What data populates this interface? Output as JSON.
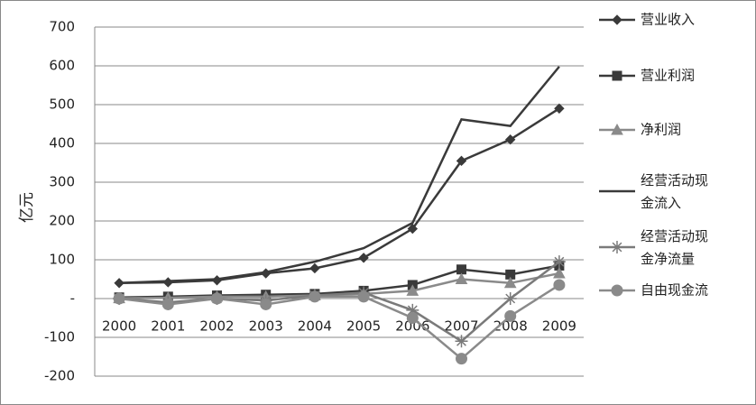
{
  "chart_data": {
    "type": "line",
    "y_label": "亿元",
    "categories": [
      "2000",
      "2001",
      "2002",
      "2003",
      "2004",
      "2005",
      "2006",
      "2007",
      "2008",
      "2009"
    ],
    "ylim": [
      -200,
      700
    ],
    "yticks": [
      -200,
      -100,
      {
        "value": 0,
        "label": "-"
      },
      100,
      200,
      300,
      400,
      500,
      600,
      700
    ],
    "grid": true,
    "legend": "right",
    "series": [
      {
        "name": "营业收入",
        "color": "#3a3a3a",
        "marker": "diamond",
        "values": [
          40,
          42,
          47,
          65,
          78,
          105,
          180,
          355,
          410,
          490
        ]
      },
      {
        "name": "营业利润",
        "color": "#3a3a3a",
        "marker": "square",
        "values": [
          3,
          5,
          8,
          10,
          12,
          20,
          35,
          75,
          62,
          85
        ]
      },
      {
        "name": "净利润",
        "color": "#8a8a8a",
        "marker": "triangle",
        "values": [
          1,
          2,
          5,
          5,
          8,
          12,
          20,
          50,
          40,
          65
        ]
      },
      {
        "name": "经营活动现金流入",
        "color": "#3a3a3a",
        "marker": "none",
        "values": [
          40,
          45,
          50,
          68,
          95,
          130,
          195,
          462,
          445,
          598
        ]
      },
      {
        "name": "经营活动现金净流量",
        "color": "#7a7a7a",
        "marker": "star",
        "values": [
          0,
          -10,
          0,
          -5,
          8,
          15,
          -30,
          -110,
          0,
          95
        ]
      },
      {
        "name": "自由现金流",
        "color": "#8a8a8a",
        "marker": "circle",
        "values": [
          0,
          -15,
          0,
          -15,
          5,
          5,
          -50,
          -155,
          -45,
          35
        ]
      }
    ]
  }
}
